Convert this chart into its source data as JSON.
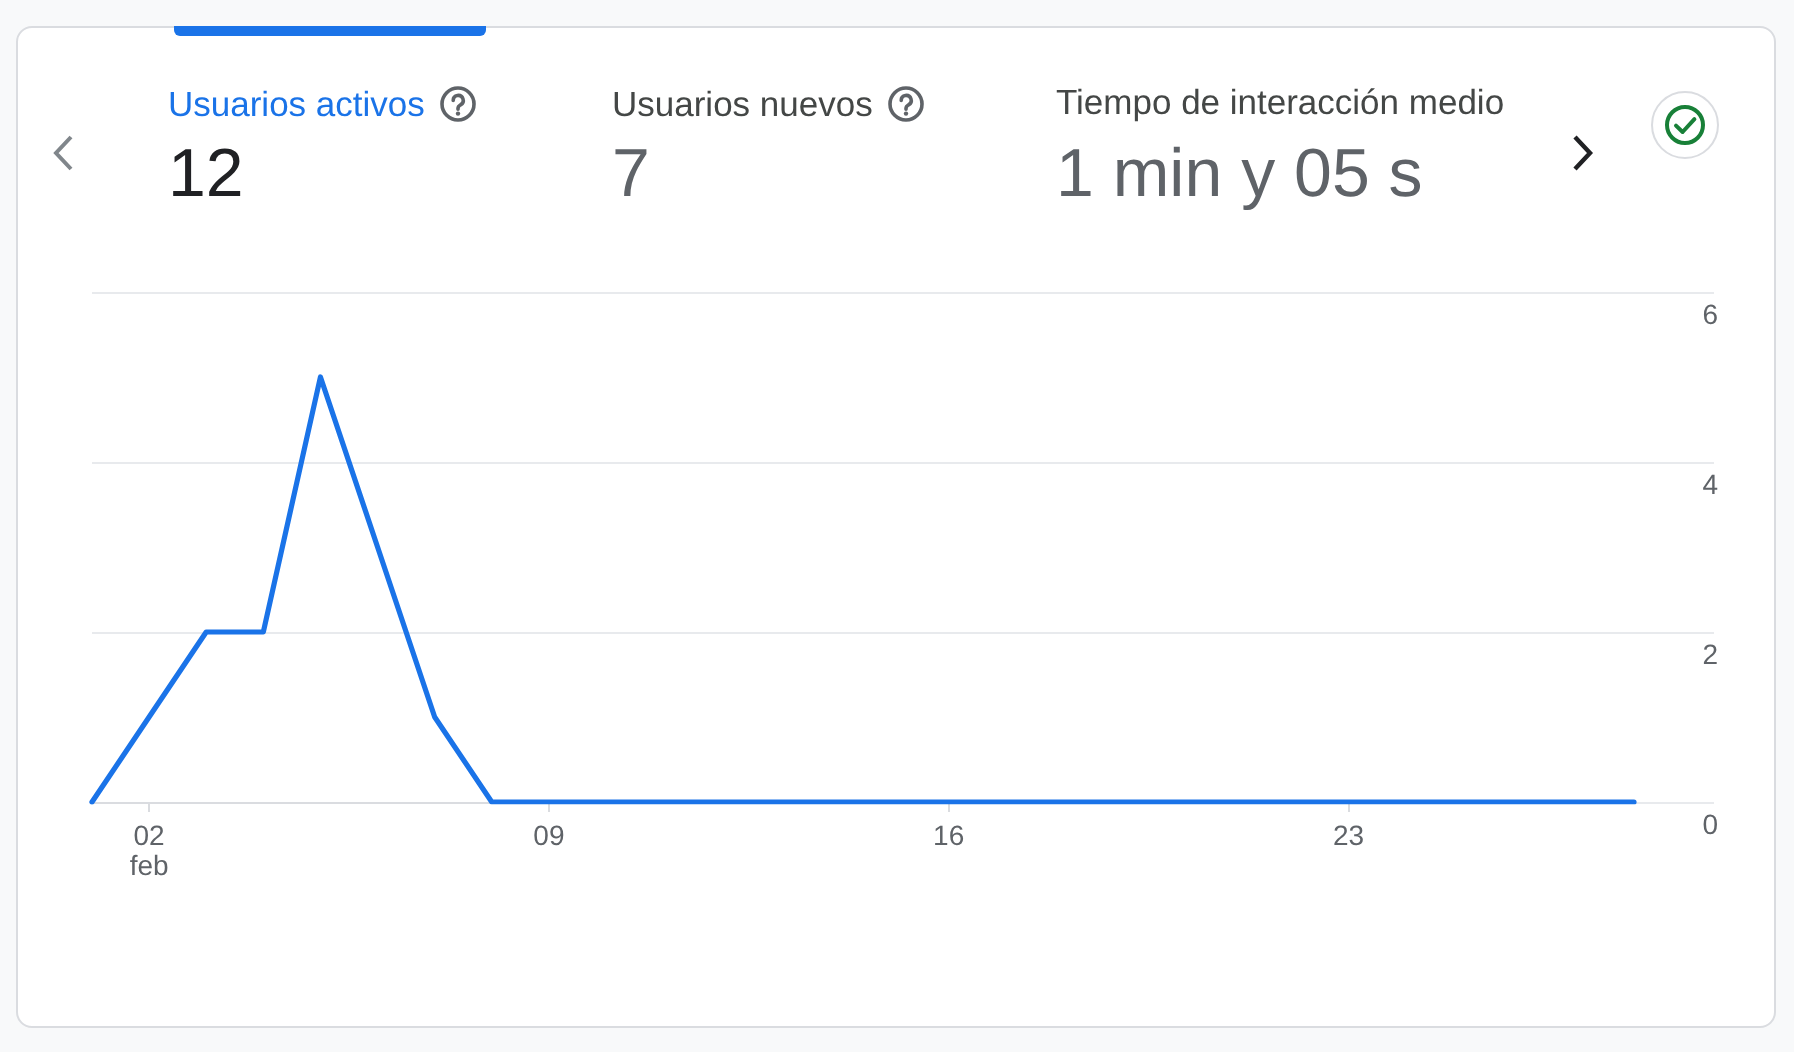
{
  "chart_data": [
    {
      "type": "other",
      "categories": [
        "Usuarios activos",
        "Usuarios nuevos",
        "Tiempo de interacción medio"
      ],
      "value_labels": [
        "12",
        "7",
        "1 min y 05 s"
      ]
    },
    {
      "type": "line",
      "categories": [
        null,
        "02\nfeb",
        null,
        null,
        null,
        null,
        null,
        null,
        "09",
        null,
        null,
        null,
        null,
        null,
        null,
        "16",
        null,
        null,
        null,
        null,
        null,
        null,
        "23",
        null,
        null,
        null,
        null,
        null
      ],
      "values": [
        0,
        1,
        2,
        2,
        5,
        3,
        1,
        0,
        0,
        0,
        0,
        0,
        0,
        0,
        0,
        0,
        0,
        0,
        0,
        0,
        0,
        0,
        0,
        0,
        0,
        0,
        0,
        0
      ],
      "color": "#1a73e8",
      "ylim": [
        0,
        6
      ],
      "yticks": [
        0,
        2,
        4,
        6
      ],
      "grid": "y",
      "marker": "none"
    }
  ]
}
